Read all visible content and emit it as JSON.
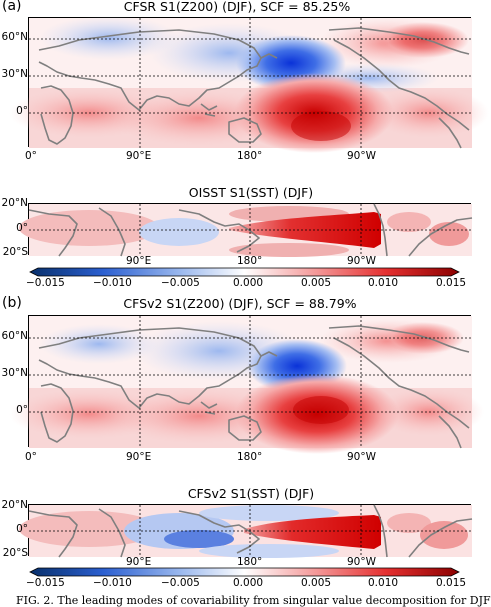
{
  "panels": {
    "a": {
      "letter": "(a)",
      "z200_title": "CFSR S1(Z200) (DJF), SCF = 85.25%",
      "sst_title": "OISST S1(SST) (DJF)"
    },
    "b": {
      "letter": "(b)",
      "z200_title": "CFSv2 S1(Z200) (DJF), SCF = 88.79%",
      "sst_title": "CFSv2 S1(SST) (DJF)"
    }
  },
  "axes": {
    "z200_yticks": [
      "60°N",
      "30°N",
      "0°"
    ],
    "z200_xticks": [
      "0°",
      "90°E",
      "180°",
      "90°W"
    ],
    "sst_yticks": [
      "20°N",
      "0°",
      "20°S"
    ],
    "sst_xticks": [
      "90°E",
      "180°",
      "90°W"
    ]
  },
  "colorbar": {
    "ticks": [
      "−0.015",
      "−0.010",
      "−0.005",
      "0.000",
      "0.005",
      "0.010",
      "0.015"
    ],
    "range": [
      -0.015,
      0.015
    ],
    "cmap": [
      "#08306b",
      "#2b5fd0",
      "#9ab8ee",
      "#ffffff",
      "#f5a3a3",
      "#e53030",
      "#8b0000"
    ]
  },
  "caption": "FIG. 2. The leading modes of covariability from singular value decomposition for DJF",
  "colors": {
    "land": "#7f7f7f",
    "positive": "#e02828",
    "negative": "#2a55d6"
  }
}
